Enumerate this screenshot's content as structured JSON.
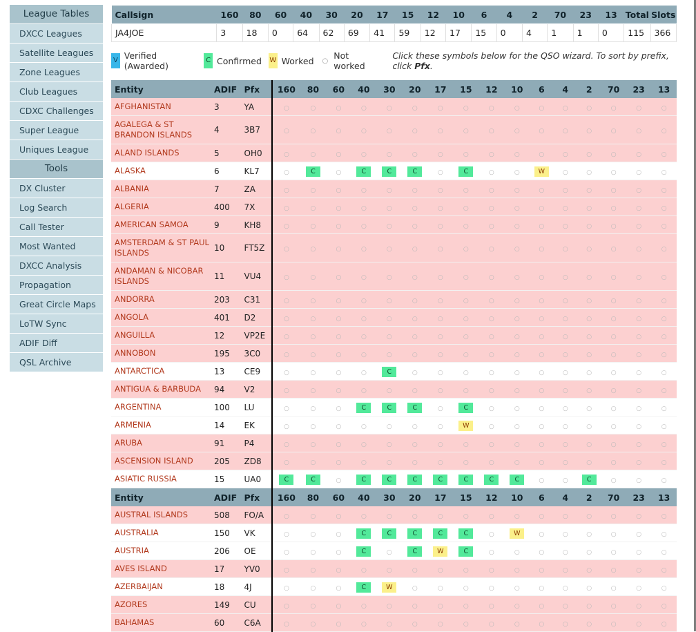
{
  "sidebar": [
    {
      "label": "League Tables",
      "type": "header"
    },
    {
      "label": "DXCC Leagues",
      "type": "item"
    },
    {
      "label": "Satellite Leagues",
      "type": "item"
    },
    {
      "label": "Zone Leagues",
      "type": "item"
    },
    {
      "label": "Club Leagues",
      "type": "item"
    },
    {
      "label": "CDXC Challenges",
      "type": "item"
    },
    {
      "label": "Super League",
      "type": "item"
    },
    {
      "label": "Uniques League",
      "type": "item"
    },
    {
      "label": "Tools",
      "type": "header"
    },
    {
      "label": "DX Cluster",
      "type": "item"
    },
    {
      "label": "Log Search",
      "type": "item"
    },
    {
      "label": "Call Tester",
      "type": "item"
    },
    {
      "label": "Most Wanted",
      "type": "item"
    },
    {
      "label": "DXCC Analysis",
      "type": "item"
    },
    {
      "label": "Propagation",
      "type": "item"
    },
    {
      "label": "Great Circle Maps",
      "type": "item"
    },
    {
      "label": "LoTW Sync",
      "type": "item"
    },
    {
      "label": "ADIF Diff",
      "type": "item"
    },
    {
      "label": "QSL Archive",
      "type": "item"
    }
  ],
  "summary": {
    "headers": [
      "Callsign",
      "160",
      "80",
      "60",
      "40",
      "30",
      "20",
      "17",
      "15",
      "12",
      "10",
      "6",
      "4",
      "2",
      "70",
      "23",
      "13",
      "Total",
      "Slots"
    ],
    "row": [
      "JA4JOE",
      "3",
      "18",
      "0",
      "64",
      "62",
      "69",
      "41",
      "59",
      "12",
      "17",
      "15",
      "0",
      "4",
      "1",
      "1",
      "0",
      "115",
      "366"
    ]
  },
  "legend": {
    "verified_symbol": "V",
    "verified_label": "Verified (Awarded)",
    "confirmed_symbol": "C",
    "confirmed_label": "Confirmed",
    "worked_symbol": "W",
    "worked_label": "Worked",
    "notworked_symbol": "○",
    "notworked_label": "Not worked",
    "note_prefix": "Click these symbols below for the QSO wizard. To sort by prefix, click ",
    "note_bold": "Pfx",
    "note_suffix": "."
  },
  "table": {
    "headers": [
      "Entity",
      "ADIF",
      "Pfx",
      "160",
      "80",
      "60",
      "40",
      "30",
      "20",
      "17",
      "15",
      "12",
      "10",
      "6",
      "4",
      "2",
      "70",
      "23",
      "13"
    ],
    "not_worked_symbol": "○",
    "rows": [
      {
        "entity": "AFGHANISTAN",
        "adif": "3",
        "pfx": "YA",
        "bands": "................"
      },
      {
        "entity": "AGALEGA & ST BRANDON ISLANDS",
        "adif": "4",
        "pfx": "3B7",
        "bands": "................"
      },
      {
        "entity": "ALAND ISLANDS",
        "adif": "5",
        "pfx": "OH0",
        "bands": "................"
      },
      {
        "entity": "ALASKA",
        "adif": "6",
        "pfx": "KL7",
        "bands": ".C.CCC.C..W....."
      },
      {
        "entity": "ALBANIA",
        "adif": "7",
        "pfx": "ZA",
        "bands": "................"
      },
      {
        "entity": "ALGERIA",
        "adif": "400",
        "pfx": "7X",
        "bands": "................"
      },
      {
        "entity": "AMERICAN SAMOA",
        "adif": "9",
        "pfx": "KH8",
        "bands": "................"
      },
      {
        "entity": "AMSTERDAM & ST PAUL ISLANDS",
        "adif": "10",
        "pfx": "FT5Z",
        "bands": "................"
      },
      {
        "entity": "ANDAMAN & NICOBAR ISLANDS",
        "adif": "11",
        "pfx": "VU4",
        "bands": "................"
      },
      {
        "entity": "ANDORRA",
        "adif": "203",
        "pfx": "C31",
        "bands": "................"
      },
      {
        "entity": "ANGOLA",
        "adif": "401",
        "pfx": "D2",
        "bands": "................"
      },
      {
        "entity": "ANGUILLA",
        "adif": "12",
        "pfx": "VP2E",
        "bands": "................"
      },
      {
        "entity": "ANNOBON",
        "adif": "195",
        "pfx": "3C0",
        "bands": "................"
      },
      {
        "entity": "ANTARCTICA",
        "adif": "13",
        "pfx": "CE9",
        "bands": "....C..........."
      },
      {
        "entity": "ANTIGUA & BARBUDA",
        "adif": "94",
        "pfx": "V2",
        "bands": "................"
      },
      {
        "entity": "ARGENTINA",
        "adif": "100",
        "pfx": "LU",
        "bands": "...CCC.C........"
      },
      {
        "entity": "ARMENIA",
        "adif": "14",
        "pfx": "EK",
        "bands": ".......W........"
      },
      {
        "entity": "ARUBA",
        "adif": "91",
        "pfx": "P4",
        "bands": "................"
      },
      {
        "entity": "ASCENSION ISLAND",
        "adif": "205",
        "pfx": "ZD8",
        "bands": "................"
      },
      {
        "entity": "ASIATIC RUSSIA",
        "adif": "15",
        "pfx": "UA0",
        "bands": "CC.CCCCCCC..C..."
      },
      {
        "header": true
      },
      {
        "entity": "AUSTRAL ISLANDS",
        "adif": "508",
        "pfx": "FO/A",
        "bands": "................"
      },
      {
        "entity": "AUSTRALIA",
        "adif": "150",
        "pfx": "VK",
        "bands": "...CCCCC.W......"
      },
      {
        "entity": "AUSTRIA",
        "adif": "206",
        "pfx": "OE",
        "bands": "...C.CWC........"
      },
      {
        "entity": "AVES ISLAND",
        "adif": "17",
        "pfx": "YV0",
        "bands": "................"
      },
      {
        "entity": "AZERBAIJAN",
        "adif": "18",
        "pfx": "4J",
        "bands": "...CW..........."
      },
      {
        "entity": "AZORES",
        "adif": "149",
        "pfx": "CU",
        "bands": "................"
      },
      {
        "entity": "BAHAMAS",
        "adif": "60",
        "pfx": "C6A",
        "bands": "................"
      }
    ]
  }
}
